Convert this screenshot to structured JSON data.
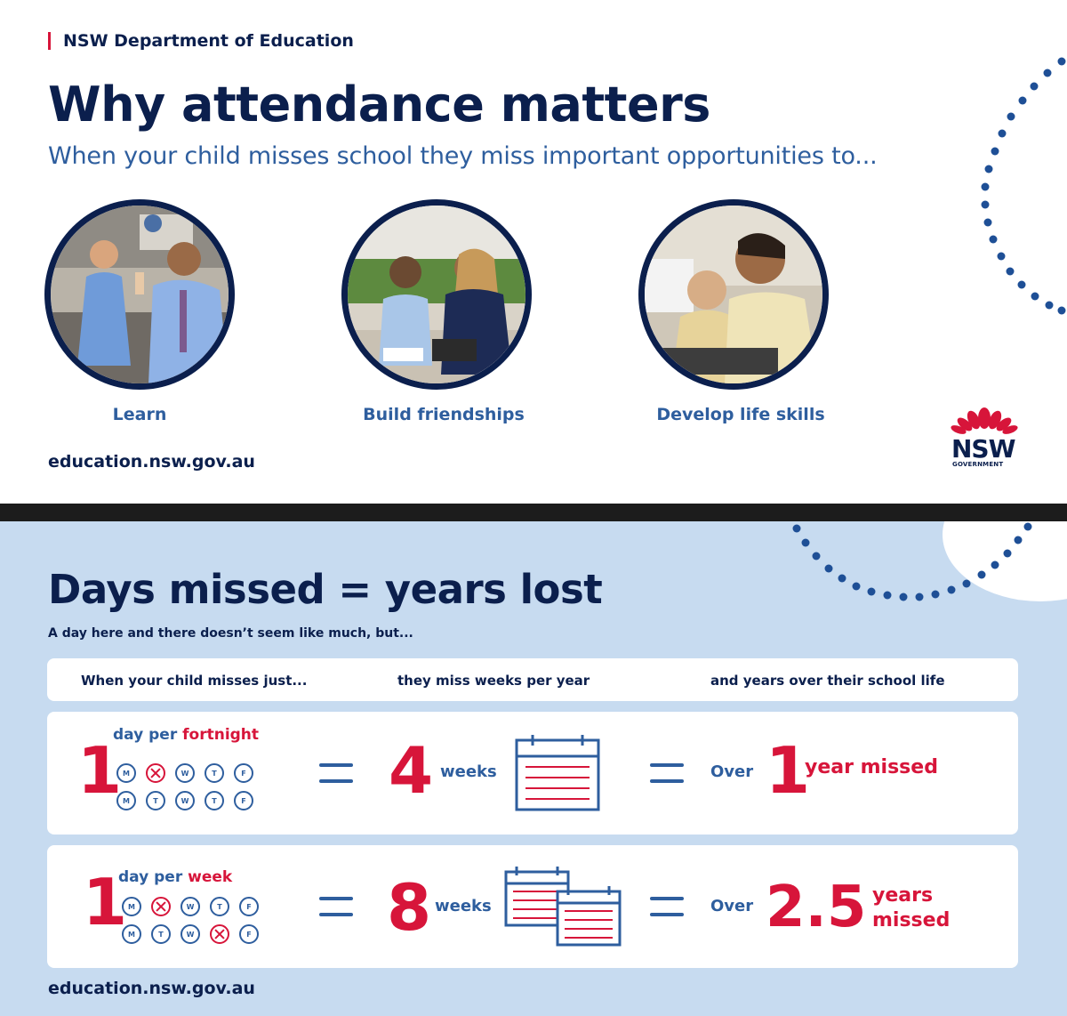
{
  "top": {
    "department": "NSW Department of Education",
    "title": "Why attendance matters",
    "subtitle": "When your child misses school they miss important opportunities to...",
    "opportunities": [
      "Learn",
      "Build friendships",
      "Develop life skills"
    ],
    "url": "education.nsw.gov.au",
    "logo": {
      "word": "NSW",
      "sub": "GOVERNMENT",
      "icon": "waratah-icon"
    }
  },
  "bottom": {
    "title": "Days missed = years lost",
    "subtitle": "A day here and there doesn’t seem like much, but...",
    "headers": [
      "When your child misses just...",
      "they miss weeks per year",
      "and years over their school life"
    ],
    "rows": [
      {
        "count": "1",
        "freq_prefix": "day per ",
        "freq_accent": "fortnight",
        "week1": [
          "M",
          "T",
          "W",
          "T",
          "F"
        ],
        "week2": [
          "M",
          "T",
          "W",
          "T",
          "F"
        ],
        "weeks_value": "4",
        "weeks_label": "weeks",
        "over_label": "Over",
        "years_value": "1",
        "years_label": "year missed"
      },
      {
        "count": "1",
        "freq_prefix": "day per ",
        "freq_accent": "week",
        "week1": [
          "M",
          "T",
          "W",
          "T",
          "F"
        ],
        "week2": [
          "M",
          "T",
          "W",
          "T",
          "F"
        ],
        "weeks_value": "8",
        "weeks_label": "weeks",
        "over_label": "Over",
        "years_value": "2.5",
        "years_label_1": "years",
        "years_label_2": "missed"
      }
    ],
    "url": "education.nsw.gov.au"
  },
  "colors": {
    "navy": "#0b1f4d",
    "blue": "#2e5e9e",
    "red": "#d7153a",
    "light_blue_bg": "#c7dbf0"
  }
}
